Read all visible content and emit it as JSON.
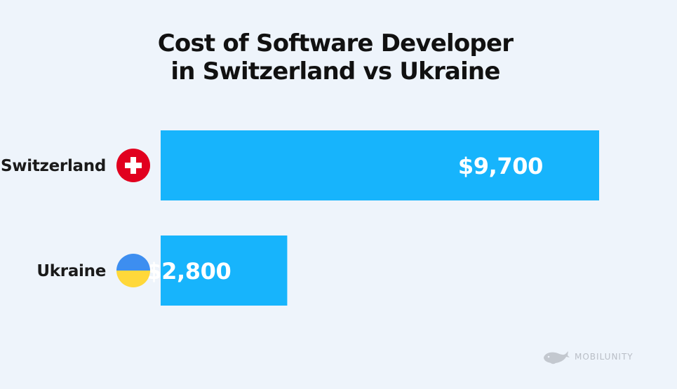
{
  "chart_data": {
    "type": "bar",
    "orientation": "horizontal",
    "title": "Cost of Software Developer in Switzerland vs Ukraine",
    "title_lines": [
      "Cost of Software Developer",
      "in Switzerland vs Ukraine"
    ],
    "categories": [
      "Switzerland",
      "Ukraine"
    ],
    "values": [
      9700,
      2800
    ],
    "value_labels": [
      "$9,700",
      "$2,800"
    ],
    "flags": [
      "switzerland-flag-icon",
      "ukraine-flag-icon"
    ],
    "xlabel": "",
    "ylabel": "",
    "grid": false,
    "legend": "none",
    "bar_color": "#17b4fc"
  },
  "colors": {
    "background": "#eef4fb",
    "bar": "#17b4fc",
    "swiss_red": "#e1001f",
    "ukraine_blue": "#3d8ef0",
    "ukraine_yellow": "#ffd83a"
  },
  "brand": {
    "name": "MOBILUNITY",
    "logo_icon": "whale-logo-icon"
  }
}
